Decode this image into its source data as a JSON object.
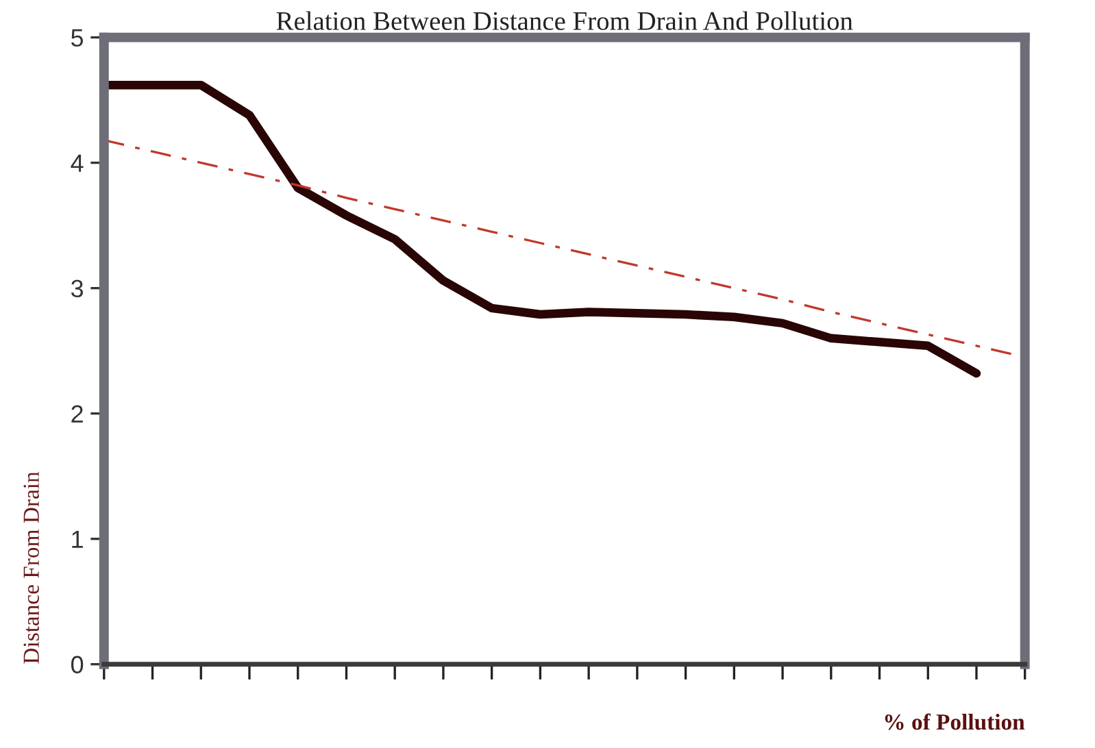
{
  "chart_data": {
    "type": "line",
    "title": "Relation Between Distance From Drain And Pollution",
    "xlabel": "% of Pollution",
    "ylabel": "Distance From Drain",
    "categories": [
      null,
      null,
      null,
      null,
      null,
      null,
      null,
      null,
      null,
      null,
      null,
      null,
      null,
      null,
      null,
      null,
      null,
      null,
      null,
      null
    ],
    "series": [
      {
        "color": "#2a0505",
        "values": [
          4.62,
          4.62,
          4.62,
          4.38,
          3.8,
          3.58,
          3.39,
          3.06,
          2.84,
          2.79,
          2.81,
          2.8,
          2.79,
          2.77,
          2.72,
          2.6,
          2.57,
          2.54,
          2.32,
          null
        ],
        "line_style": "solid"
      },
      {
        "type": "line",
        "color": "#c0392b",
        "values": [
          4.18,
          4.09,
          4.0,
          3.91,
          3.82,
          3.72,
          3.63,
          3.54,
          3.45,
          3.36,
          3.27,
          3.18,
          3.09,
          3.0,
          2.91,
          2.81,
          2.72,
          2.63,
          2.54,
          2.45
        ],
        "line_style": "dashed"
      }
    ],
    "ylim": [
      0,
      5
    ],
    "yticks": [
      0,
      1,
      2,
      3,
      4,
      5
    ],
    "tick_labels": "y",
    "grid": false,
    "marker": "none"
  }
}
